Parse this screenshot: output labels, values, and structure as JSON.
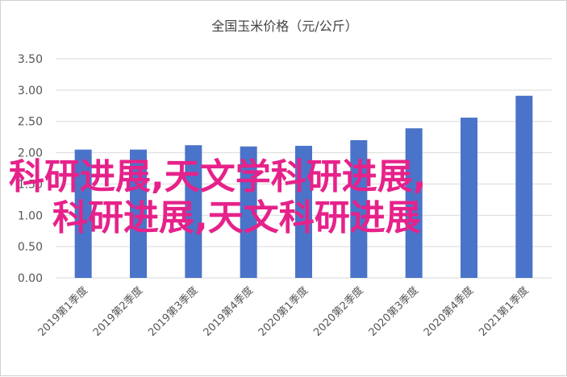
{
  "chart_data": {
    "type": "bar",
    "title": "全国玉米价格（元/公斤）",
    "categories": [
      "2019第1季度",
      "2019第2季度",
      "2019第3季度",
      "2019第4季度",
      "2020第1季度",
      "2020第2季度",
      "2020第3季度",
      "2020第4季度",
      "2021第1季度"
    ],
    "values": [
      2.05,
      2.05,
      2.12,
      2.1,
      2.11,
      2.2,
      2.39,
      2.56,
      2.91
    ],
    "ylim": [
      0,
      3.5
    ],
    "yticks": [
      "0.00",
      "0.50",
      "1.00",
      "1.50",
      "2.00",
      "2.50",
      "3.00",
      "3.50"
    ],
    "grid": true,
    "bar_color": "#4a74c9"
  },
  "overlay": {
    "line1": "科研进展,天文学科研进展,",
    "line2": "科研进展,天文科研进展",
    "color": "#e6228a"
  }
}
